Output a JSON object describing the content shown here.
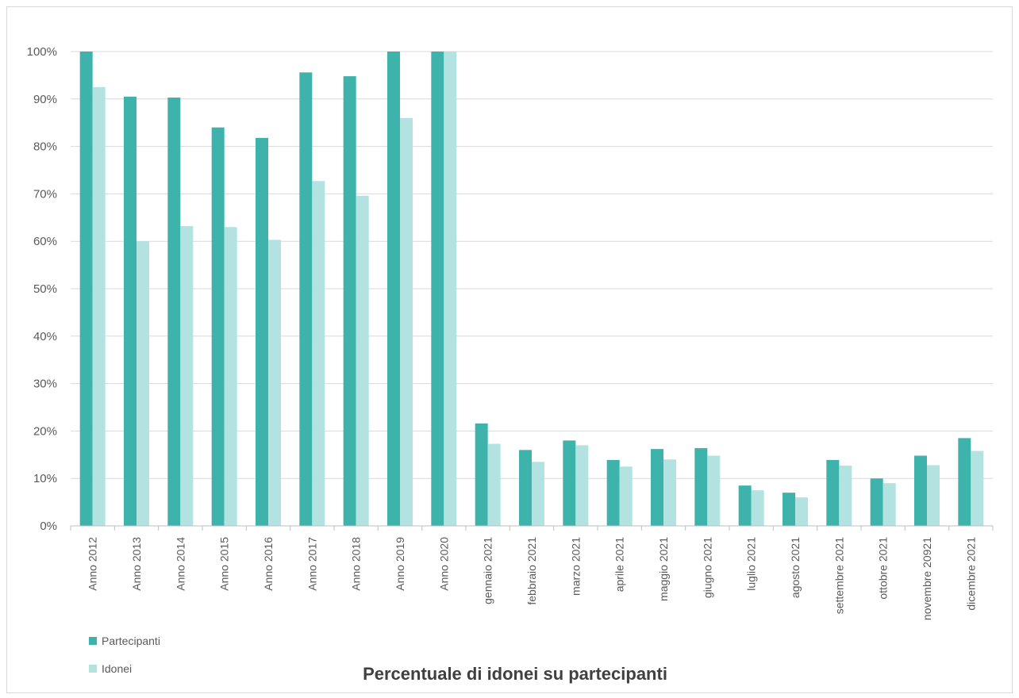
{
  "chart_data": {
    "type": "bar",
    "title": "Percentuale di idonei su partecipanti",
    "xlabel": "",
    "ylabel": "",
    "ylim": [
      0,
      100
    ],
    "yticks": [
      "0%",
      "10%",
      "20%",
      "30%",
      "40%",
      "50%",
      "60%",
      "70%",
      "80%",
      "90%",
      "100%"
    ],
    "grid": true,
    "legend_position": "bottom-left",
    "categories": [
      "Anno 2012",
      "Anno 2013",
      "Anno 2014",
      "Anno 2015",
      "Anno 2016",
      "Anno 2017",
      "Anno 2018",
      "Anno 2019",
      "Anno 2020",
      "gennaio 2021",
      "febbraio 2021",
      "marzo 2021",
      "aprile 2021",
      "maggio 2021",
      "giugno 2021",
      "luglio 2021",
      "agosto 2021",
      "settembre 2021",
      "ottobre 2021",
      "novembre 20921",
      "dicembre 2021"
    ],
    "series": [
      {
        "name": "Partecipanti",
        "color": "#3db3ab",
        "values": [
          100,
          90.5,
          90.3,
          84,
          81.8,
          95.6,
          94.8,
          100,
          100,
          21.6,
          16,
          18,
          13.9,
          16.2,
          16.4,
          8.5,
          7,
          13.9,
          10,
          14.8,
          18.5
        ]
      },
      {
        "name": "Idonei",
        "color": "#b3e3e0",
        "values": [
          92.5,
          60,
          63.2,
          63,
          60.3,
          72.7,
          69.6,
          86,
          100,
          17.3,
          13.5,
          17,
          12.5,
          14,
          14.8,
          7.5,
          6,
          12.7,
          9,
          12.8,
          15.8
        ]
      }
    ]
  }
}
